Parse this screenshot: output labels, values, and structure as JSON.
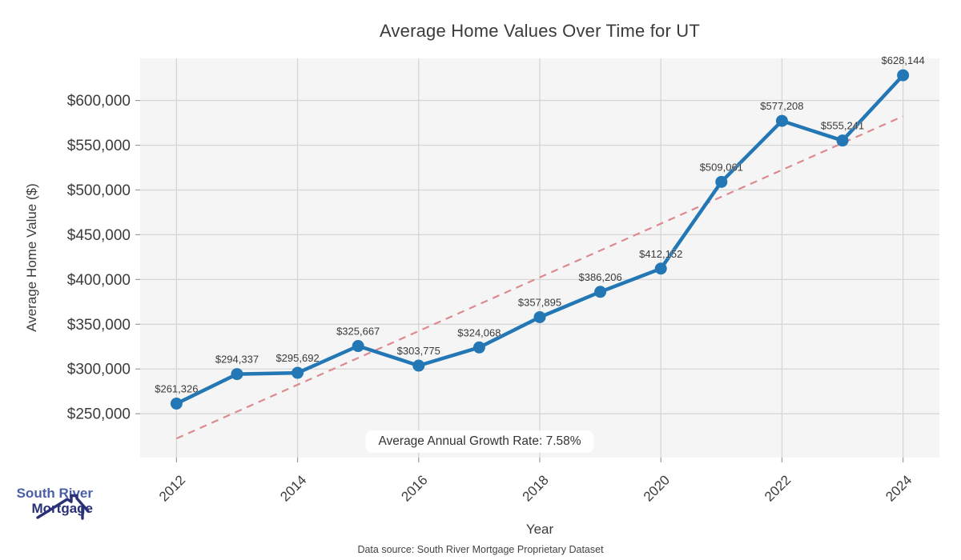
{
  "chart_data": {
    "type": "line",
    "title": "Average Home Values Over Time for UT",
    "xlabel": "Year",
    "ylabel": "Average Home Value ($)",
    "x": [
      2012,
      2013,
      2014,
      2015,
      2016,
      2017,
      2018,
      2019,
      2020,
      2021,
      2022,
      2023,
      2024
    ],
    "values": [
      261326,
      294337,
      295692,
      325667,
      303775,
      324068,
      357895,
      386206,
      412152,
      509061,
      577208,
      555241,
      628144
    ],
    "point_labels": [
      "$261,326",
      "$294,337",
      "$295,692",
      "$325,667",
      "$303,775",
      "$324,068",
      "$357,895",
      "$386,206",
      "$412,152",
      "$509,061",
      "$577,208",
      "$555,241",
      "$628,144"
    ],
    "x_ticks": [
      2012,
      2014,
      2016,
      2018,
      2020,
      2022,
      2024
    ],
    "y_ticks": [
      250000,
      300000,
      350000,
      400000,
      450000,
      500000,
      550000,
      600000
    ],
    "y_tick_labels": [
      "$250,000",
      "$300,000",
      "$350,000",
      "$400,000",
      "$450,000",
      "$500,000",
      "$550,000",
      "$600,000"
    ],
    "xlim": [
      2011.4,
      2024.6
    ],
    "ylim": [
      201000,
      647000
    ],
    "grid": true,
    "legend": "none",
    "annotation": "Average Annual Growth Rate: 7.58%",
    "trend_line": {
      "style": "dashed",
      "x": [
        2012,
        2024
      ],
      "y": [
        222349,
        582385
      ]
    },
    "colors": {
      "line": "#2277b4",
      "trend": "#dc8a8f",
      "plot_bg": "#f5f5f5",
      "grid": "#d6d6d6",
      "tick": "#9a9a9a",
      "text": "#3b3b3b",
      "point_label": "#3a3a3a"
    }
  },
  "logo": {
    "line1": "South River",
    "line2": "Mortgage",
    "color1": "#4a5fa8",
    "color2": "#2b3176"
  },
  "footer": {
    "text": "Data source: South River Mortgage Proprietary Dataset"
  }
}
